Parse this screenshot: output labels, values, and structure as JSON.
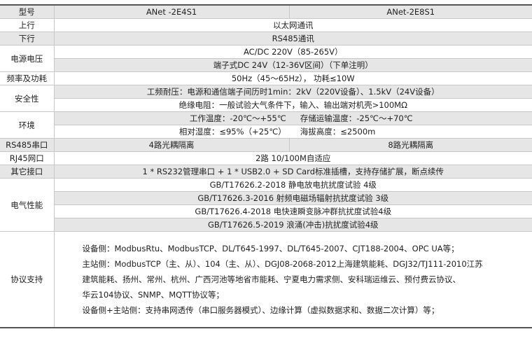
{
  "header": {
    "label": "型号",
    "model_a": "ANet -2E4S1",
    "model_b": "ANet-2E8S1"
  },
  "uplink": {
    "label": "上行",
    "value": "以太网通讯"
  },
  "downlink": {
    "label": "下行",
    "value": "RS485通讯"
  },
  "power_supply": {
    "label": "电源电压",
    "values": [
      "AC/DC 220V（85-265V）",
      "端子式DC 24V（12-36V区间）（下单注明）"
    ]
  },
  "frequency": {
    "label": "频率及功耗",
    "value": "50Hz（45～65Hz），  功耗≤10W"
  },
  "safety": {
    "label": "安全性",
    "values": [
      "工频耐压：电源和通信端子间历时1min：2kV（220V设备）、1.5kV（24V设备）",
      "绝缘电阻：一般试验大气条件下，输入、输出端对机壳>100MΩ"
    ]
  },
  "environment": {
    "label": "环境",
    "working_temp": "工作温度：-20℃～+55℃",
    "storage_temp": "存储运输温度：-25℃～+70℃",
    "humidity": "相对湿度：≤95%（+25℃）",
    "altitude": "海拔高度：≤2500m"
  },
  "rs485": {
    "label": "RS485串口",
    "value_a": "4路光耦隔离",
    "value_b": "8路光耦隔离"
  },
  "rj45": {
    "label": "RJ45网口",
    "value": "2路 10/100M自适应"
  },
  "other": {
    "label": "其它接口",
    "value": "1 * RS232管理串口 + 1 * USB2.0 + SD Card标准插槽，支持存储扩展，断点续传"
  },
  "electrical": {
    "label": "电气性能",
    "values": [
      "GB/T17626.2-2018 静电放电抗扰度试验 4级",
      "GB/T17626.3-2016 射频电磁场辐射抗扰度试验 3级",
      "GB/T17626.4-2018 电快速瞬变脉冲群抗扰度试验4级",
      "GB/T17626.5-2019 浪涌(冲击)抗扰度试验4级"
    ]
  },
  "protocol": {
    "label": "协议支持",
    "lines": [
      "设备侧：ModbusRtu、ModbusTCP、DL/T645-1997、DL/T645-2007、CJT188-2004、OPC UA等；",
      "主站侧：ModbusTCP（主、从）、104（主、从）、DGJ08-2068-2012上海建筑能耗、DGJ32/TJ111-2010江苏",
      "建筑能耗、扬州、常州、杭州、广西河池等地省市能耗、宁夏电力需求侧、安科瑞运维云、预付费云协议、",
      "华云104协议、SNMP、MQTT协议等；",
      "设备侧+主站侧：支持串网透传（串口服务器模式）、边缘计算（虚拟数据求和、数据二次计算）等；"
    ]
  }
}
